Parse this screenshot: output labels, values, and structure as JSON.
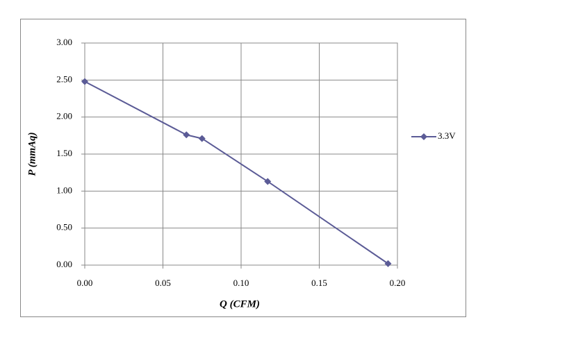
{
  "chart_data": {
    "type": "line",
    "x_label": "Q (CFM)",
    "y_label": "P (mmAq)",
    "x": [
      0.0,
      0.065,
      0.075,
      0.117,
      0.194
    ],
    "series": [
      {
        "name": "3.3V",
        "color": "#5b5b96",
        "values": [
          2.48,
          1.76,
          1.71,
          1.13,
          0.02
        ]
      }
    ],
    "xlim": [
      0,
      0.2
    ],
    "xticks": [
      {
        "value": 0,
        "label": "0.00"
      },
      {
        "value": 0.05,
        "label": "0.05"
      },
      {
        "value": 0.1,
        "label": "0.10"
      },
      {
        "value": 0.15,
        "label": "0.15"
      },
      {
        "value": 0.2,
        "label": "0.20"
      }
    ],
    "ylim": [
      0,
      3
    ],
    "yticks": [
      {
        "value": 0,
        "label": "0.00"
      },
      {
        "value": 0.5,
        "label": "0.50"
      },
      {
        "value": 1,
        "label": "1.00"
      },
      {
        "value": 1.5,
        "label": "1.50"
      },
      {
        "value": 2,
        "label": "2.00"
      },
      {
        "value": 2.5,
        "label": "2.50"
      },
      {
        "value": 3,
        "label": "3.00"
      }
    ],
    "grid": true,
    "legend": "right"
  }
}
